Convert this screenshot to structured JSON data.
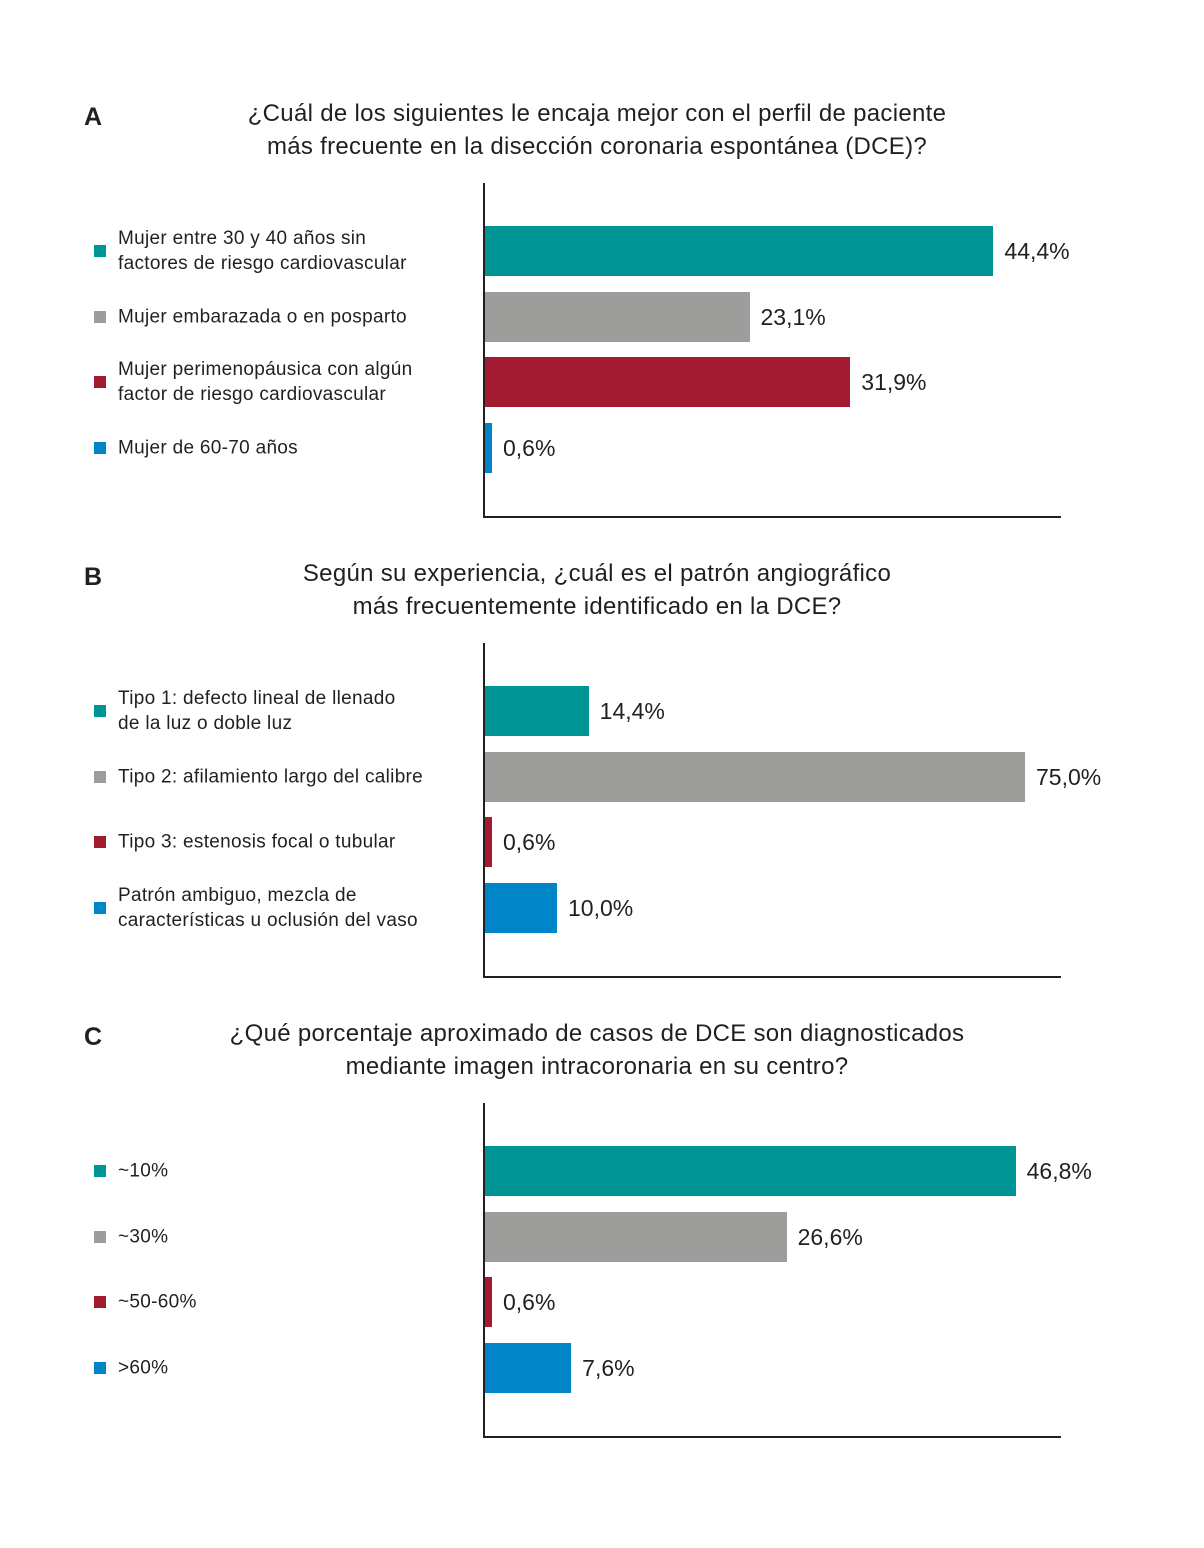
{
  "chart_data": [
    {
      "type": "bar",
      "orientation": "horizontal",
      "panel": "A",
      "title": [
        "¿Cuál de los siguientes le encaja mejor con el perfil de paciente",
        "más frecuente en la disección coronaria espontánea (DCE)?"
      ],
      "categories": [
        [
          "Mujer entre 30 y 40 años sin",
          "factores de riesgo cardiovascular"
        ],
        [
          "Mujer embarazada o en posparto"
        ],
        [
          "Mujer perimenopáusica con algún",
          "factor de riesgo cardiovascular"
        ],
        [
          "Mujer de 60-70 años"
        ]
      ],
      "values": [
        44.4,
        23.1,
        31.9,
        0.6
      ],
      "value_labels": [
        "44,4%",
        "23,1%",
        "31,9%",
        "0,6%"
      ],
      "colors": [
        "#009595",
        "#9d9d9c",
        "#a31b31",
        "#0085c9"
      ],
      "xlim": [
        0,
        50.3
      ]
    },
    {
      "type": "bar",
      "orientation": "horizontal",
      "panel": "B",
      "title": [
        "Según su experiencia, ¿cuál es el patrón angiográfico",
        "más frecuentemente identificado en la DCE?"
      ],
      "categories": [
        [
          "Tipo 1: defecto lineal de llenado",
          "de la luz o doble luz"
        ],
        [
          "Tipo 2: afilamiento largo del calibre"
        ],
        [
          "Tipo 3: estenosis focal o tubular"
        ],
        [
          "Patrón ambiguo, mezcla de",
          "características u oclusión del vaso"
        ]
      ],
      "values": [
        14.4,
        75.0,
        0.6,
        10.0
      ],
      "value_labels": [
        "14,4%",
        "75,0%",
        "0,6%",
        "10,0%"
      ],
      "colors": [
        "#009595",
        "#9d9d9c",
        "#a31b31",
        "#0085c9"
      ],
      "xlim": [
        0,
        80
      ]
    },
    {
      "type": "bar",
      "orientation": "horizontal",
      "panel": "C",
      "title": [
        "¿Qué porcentaje aproximado de casos de DCE son diagnosticados",
        "mediante imagen intracoronaria en su centro?"
      ],
      "categories": [
        [
          "~10%"
        ],
        [
          "~30%"
        ],
        [
          "~50-60%"
        ],
        [
          ">60%"
        ]
      ],
      "values": [
        46.8,
        26.6,
        0.6,
        7.6
      ],
      "value_labels": [
        "46,8%",
        "26,6%",
        "0,6%",
        "7,6%"
      ],
      "colors": [
        "#009595",
        "#9d9d9c",
        "#a31b31",
        "#0085c9"
      ],
      "xlim": [
        0,
        50.8
      ]
    }
  ]
}
